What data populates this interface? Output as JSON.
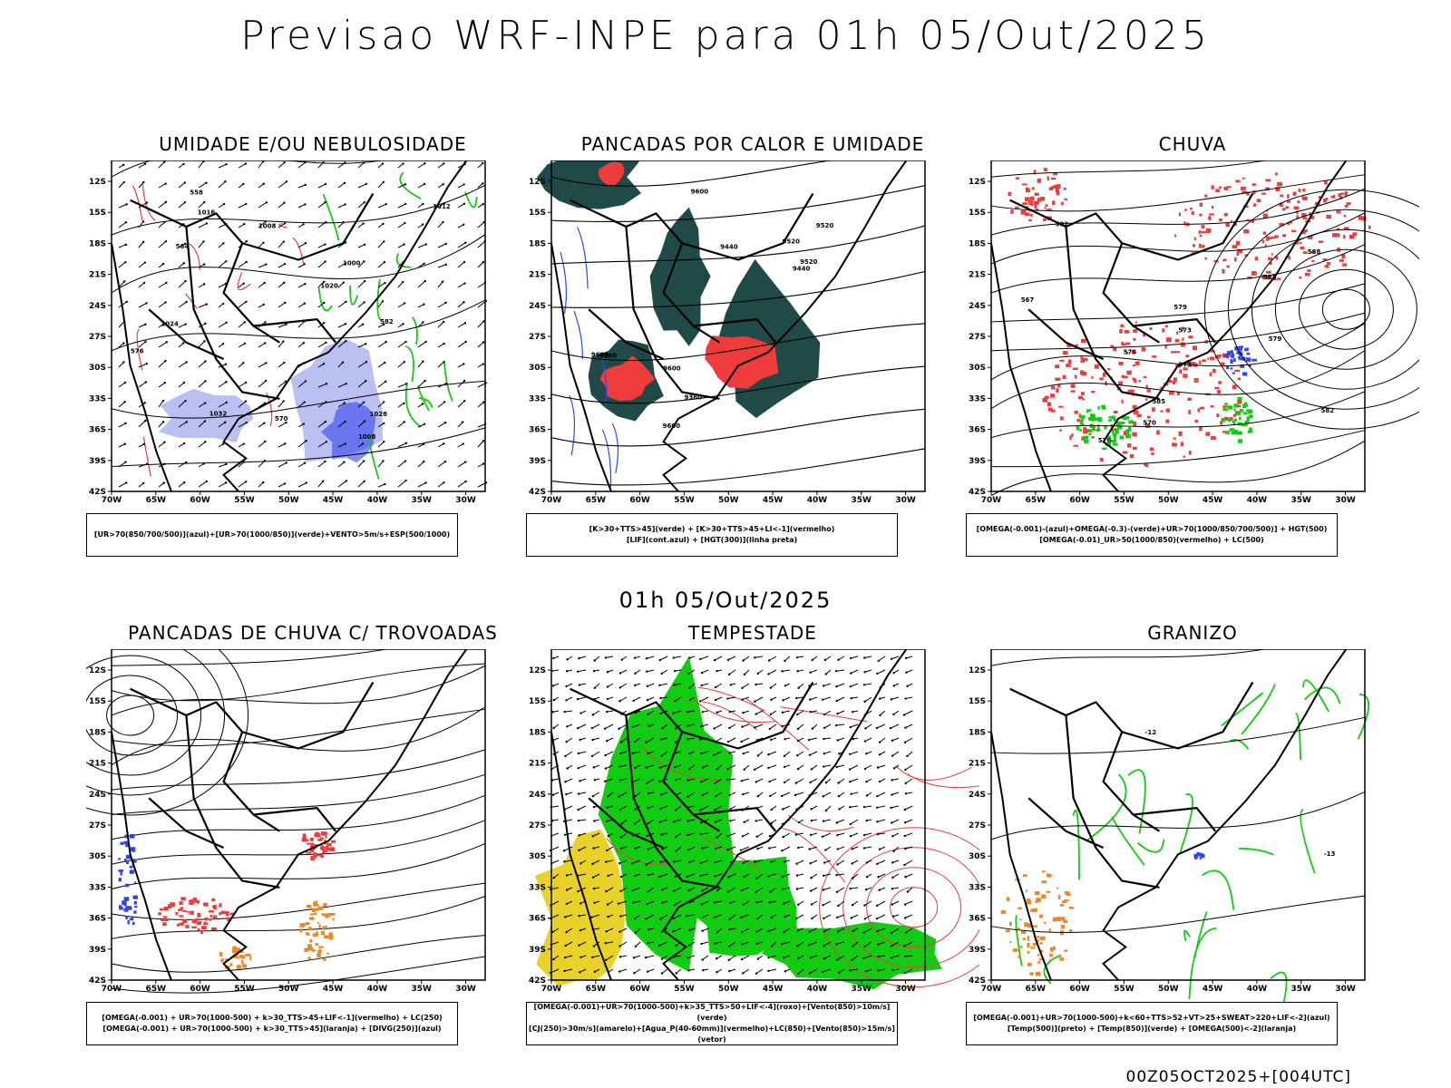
{
  "main_title": "Previsao WRF-INPE  para 01h 05/Out/2025",
  "mid_title": "01h 05/Out/2025",
  "footer": "00Z05OCT2025+[004UTC]",
  "axes": {
    "lat_ticks": [
      "12S",
      "15S",
      "18S",
      "21S",
      "24S",
      "27S",
      "30S",
      "33S",
      "36S",
      "39S",
      "42S"
    ],
    "lon_ticks": [
      "70W",
      "65W",
      "60W",
      "55W",
      "50W",
      "45W",
      "40W",
      "35W",
      "30W"
    ]
  },
  "colors": {
    "blue": "#3344ee",
    "lightblue": "#aab0f0",
    "green": "#11cc11",
    "red": "#ee3b3b",
    "darkteal": "#1f4a48",
    "orange": "#e88a2a",
    "yellow": "#e8d22a"
  },
  "panels": [
    {
      "title": "UMIDADE E/OU NEBULOSIDADE",
      "legend": [
        "[UR>70(850/700/500)](azul)+[UR>70(1000/850)](verde)+VENTO>5m/s+ESP(500/1000)"
      ],
      "contour_labels": [
        "1008",
        "1008",
        "1016",
        "1020",
        "1024",
        "1028",
        "1032",
        "1000",
        "1012",
        "576",
        "570",
        "564",
        "558",
        "582"
      ]
    },
    {
      "title": "PANCADAS POR CALOR E UMIDADE",
      "legend": [
        "[K>30+TTS>45](verde) + [K>30+TTS>45+LI<-1](vermelho)",
        "[LIF](cont.azul) + [HGT(300)](linha preta)"
      ],
      "contour_labels": [
        "9600",
        "9600",
        "9600",
        "9520",
        "9520",
        "9440",
        "9440",
        "9360",
        "9280",
        "9520",
        "9600"
      ]
    },
    {
      "title": "CHUVA",
      "legend": [
        "[OMEGA(-0.001)-(azul)+OMEGA(-0.3)-(verde)+UR>70(1000/850/700/500)] + HGT(500)",
        "[OMEGA(-0.01)_UR>50(1000/850)(vermelho) + LC(500)"
      ],
      "contour_labels": [
        "588",
        "585",
        "582",
        "579",
        "576",
        "573",
        "570",
        "567",
        "585",
        "582",
        "579",
        "576",
        "573"
      ]
    },
    {
      "title": "PANCADAS DE CHUVA C/ TROVOADAS",
      "legend": [
        "[OMEGA(-0.001) + UR>70(1000-500) + k>30_TTS>45+LIF<-1](vermelho) + LC(250)",
        "[OMEGA(-0.001) + UR>70(1000-500) + k>30_TTS>45](laranja) + [DIVG(250)](azul)"
      ],
      "contour_labels": []
    },
    {
      "title": "TEMPESTADE",
      "legend": [
        "[OMEGA(-0.001)+UR>70(1000-500)+k>35_TTS>50+LIF<-4](roxo)+[Vento(850)>10m/s](verde)",
        "[CJ(250)>30m/s](amarelo)+[Agua_P(40-60mm)](vermelho)+LC(850)+[Vento(850)>15m/s](vetor)"
      ],
      "contour_labels": []
    },
    {
      "title": "GRANIZO",
      "legend": [
        "[OMEGA(-0.001)+UR>70(1000-500)+k<60+TTS>52+VT>25+SWEAT>220+LIF<-2](azul)",
        "[Temp(500)](preto) + [Temp(850)](verde) + [OMEGA(500)<-2](laranja)"
      ],
      "contour_labels": [
        "-13",
        "-12"
      ]
    }
  ]
}
